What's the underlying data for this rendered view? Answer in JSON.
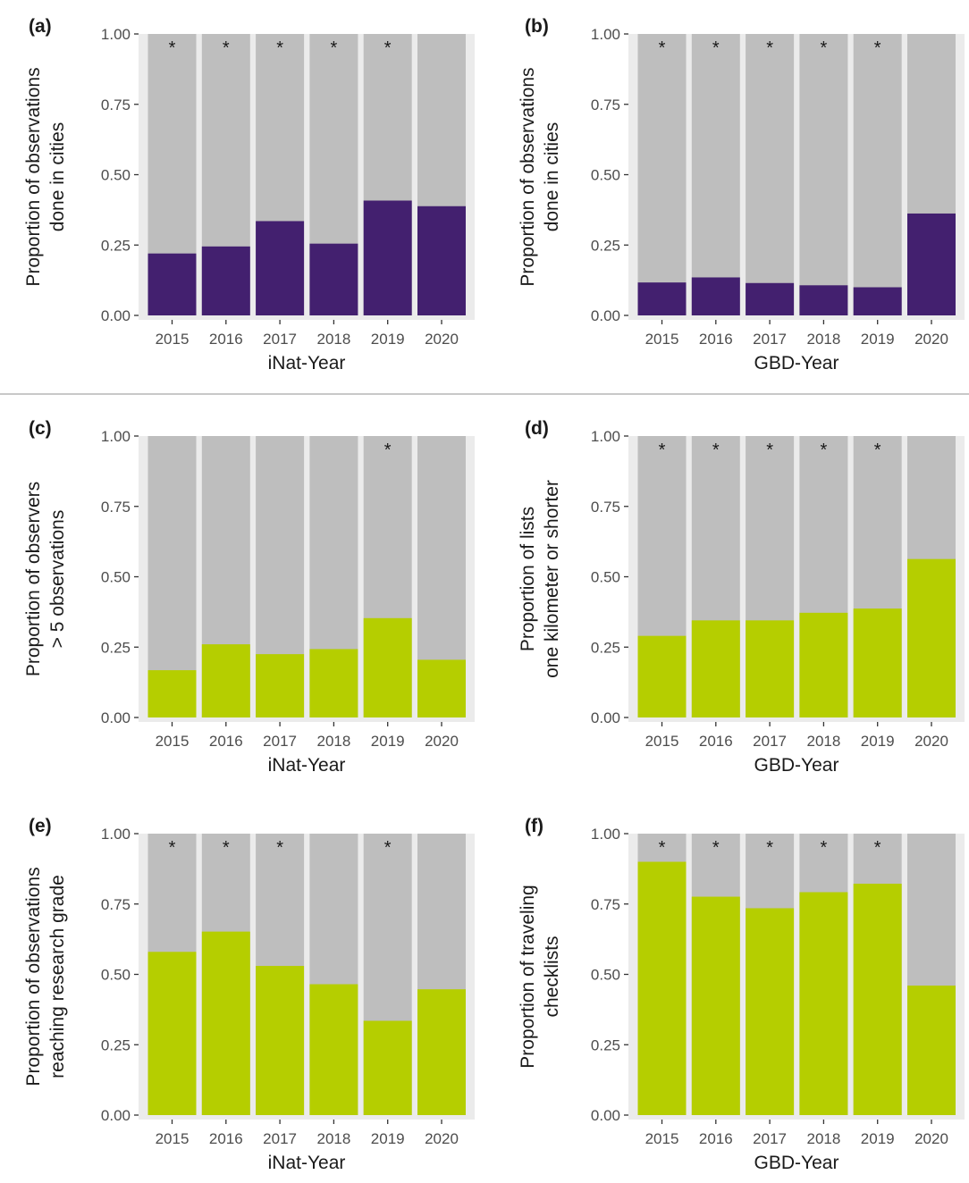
{
  "colors": {
    "panel_bg": "#ebebeb",
    "bar_gray": "#bebebe",
    "purple": "#43206f",
    "green": "#b5ce00",
    "text": "#1a1a1a",
    "axis_text": "#4d4d4d",
    "separator": "#c8c8c8"
  },
  "chart_data": [
    {
      "panel": "(a)",
      "type": "bar",
      "stacked": true,
      "categories": [
        "2015",
        "2016",
        "2017",
        "2018",
        "2019",
        "2020"
      ],
      "values": [
        0.22,
        0.245,
        0.335,
        0.255,
        0.408,
        0.388
      ],
      "significance": [
        "*",
        "*",
        "*",
        "*",
        "*",
        ""
      ],
      "ylabel": [
        "Proportion of observations",
        "done in cities"
      ],
      "xlabel": "iNat-Year",
      "ylim": [
        0,
        1
      ],
      "yticks": [
        "0.00",
        "0.25",
        "0.50",
        "0.75",
        "1.00"
      ],
      "fill": "purple"
    },
    {
      "panel": "(b)",
      "type": "bar",
      "stacked": true,
      "categories": [
        "2015",
        "2016",
        "2017",
        "2018",
        "2019",
        "2020"
      ],
      "values": [
        0.117,
        0.135,
        0.115,
        0.107,
        0.1,
        0.362
      ],
      "significance": [
        "*",
        "*",
        "*",
        "*",
        "*",
        ""
      ],
      "ylabel": [
        "Proportion of observations",
        "done in cities"
      ],
      "xlabel": "GBD-Year",
      "ylim": [
        0,
        1
      ],
      "yticks": [
        "0.00",
        "0.25",
        "0.50",
        "0.75",
        "1.00"
      ],
      "fill": "purple"
    },
    {
      "panel": "(c)",
      "type": "bar",
      "stacked": true,
      "categories": [
        "2015",
        "2016",
        "2017",
        "2018",
        "2019",
        "2020"
      ],
      "values": [
        0.168,
        0.26,
        0.225,
        0.243,
        0.353,
        0.205
      ],
      "significance": [
        "",
        "",
        "",
        "",
        "*",
        ""
      ],
      "ylabel": [
        "Proportion of observers",
        "> 5 observations"
      ],
      "xlabel": "iNat-Year",
      "ylim": [
        0,
        1
      ],
      "yticks": [
        "0.00",
        "0.25",
        "0.50",
        "0.75",
        "1.00"
      ],
      "fill": "green"
    },
    {
      "panel": "(d)",
      "type": "bar",
      "stacked": true,
      "categories": [
        "2015",
        "2016",
        "2017",
        "2018",
        "2019",
        "2020"
      ],
      "values": [
        0.29,
        0.345,
        0.345,
        0.372,
        0.387,
        0.563
      ],
      "significance": [
        "*",
        "*",
        "*",
        "*",
        "*",
        ""
      ],
      "ylabel": [
        "Proportion of lists",
        "one kilometer or shorter"
      ],
      "xlabel": "GBD-Year",
      "ylim": [
        0,
        1
      ],
      "yticks": [
        "0.00",
        "0.25",
        "0.50",
        "0.75",
        "1.00"
      ],
      "fill": "green"
    },
    {
      "panel": "(e)",
      "type": "bar",
      "stacked": true,
      "categories": [
        "2015",
        "2016",
        "2017",
        "2018",
        "2019",
        "2020"
      ],
      "values": [
        0.58,
        0.652,
        0.53,
        0.465,
        0.335,
        0.447
      ],
      "significance": [
        "*",
        "*",
        "*",
        "",
        "*",
        ""
      ],
      "ylabel": [
        "Proportion of observations",
        "reaching research grade"
      ],
      "xlabel": "iNat-Year",
      "ylim": [
        0,
        1
      ],
      "yticks": [
        "0.00",
        "0.25",
        "0.50",
        "0.75",
        "1.00"
      ],
      "fill": "green"
    },
    {
      "panel": "(f)",
      "type": "bar",
      "stacked": true,
      "categories": [
        "2015",
        "2016",
        "2017",
        "2018",
        "2019",
        "2020"
      ],
      "values": [
        0.9,
        0.776,
        0.735,
        0.792,
        0.822,
        0.46
      ],
      "significance": [
        "*",
        "*",
        "*",
        "*",
        "*",
        ""
      ],
      "ylabel": [
        "Proportion of traveling",
        "checklists"
      ],
      "xlabel": "GBD-Year",
      "ylim": [
        0,
        1
      ],
      "yticks": [
        "0.00",
        "0.25",
        "0.50",
        "0.75",
        "1.00"
      ],
      "fill": "green"
    }
  ]
}
